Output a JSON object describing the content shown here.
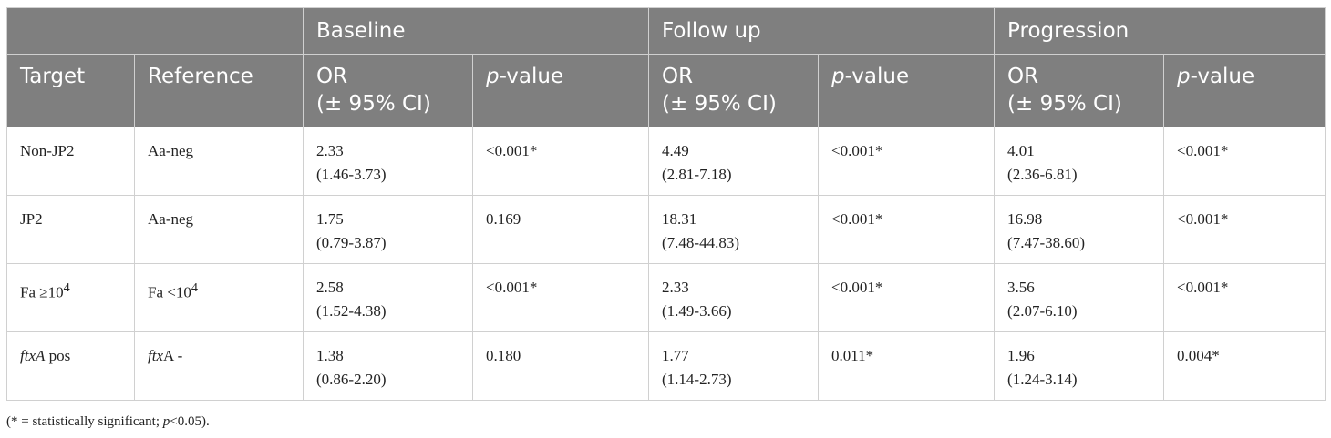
{
  "header": {
    "groups": [
      "Baseline",
      "Follow up",
      "Progression"
    ],
    "target": "Target",
    "reference": "Reference",
    "or_line1": "OR",
    "or_line2": "(± 95% CI)",
    "p_italic": "p",
    "p_rest": "-value"
  },
  "rows": [
    {
      "target": {
        "pre": "Non-JP2",
        "sup": "",
        "post": ""
      },
      "reference": {
        "pre": "Aa-neg",
        "sup": "",
        "post": ""
      },
      "baseline_or": "2.33",
      "baseline_ci": "(1.46-3.73)",
      "baseline_p": "<0.001*",
      "follow_or": "4.49",
      "follow_ci": "(2.81-7.18)",
      "follow_p": "<0.001*",
      "prog_or": "4.01",
      "prog_ci": "(2.36-6.81)",
      "prog_p": "<0.001*"
    },
    {
      "target": {
        "pre": "JP2",
        "sup": "",
        "post": ""
      },
      "reference": {
        "pre": "Aa-neg",
        "sup": "",
        "post": ""
      },
      "baseline_or": "1.75",
      "baseline_ci": "(0.79-3.87)",
      "baseline_p": "0.169",
      "follow_or": "18.31",
      "follow_ci": "(7.48-44.83)",
      "follow_p": "<0.001*",
      "prog_or": "16.98",
      "prog_ci": "(7.47-38.60)",
      "prog_p": "<0.001*"
    },
    {
      "target": {
        "pre": "Fa ≥10",
        "sup": "4",
        "post": ""
      },
      "reference": {
        "pre": "Fa <10",
        "sup": "4",
        "post": ""
      },
      "baseline_or": "2.58",
      "baseline_ci": "(1.52-4.38)",
      "baseline_p": "<0.001*",
      "follow_or": "2.33",
      "follow_ci": "(1.49-3.66)",
      "follow_p": "<0.001*",
      "prog_or": "3.56",
      "prog_ci": "(2.07-6.10)",
      "prog_p": "<0.001*"
    },
    {
      "target": {
        "it": "ftxA",
        "post": " pos"
      },
      "reference": {
        "it": "ftx",
        "post": "A -"
      },
      "baseline_or": "1.38",
      "baseline_ci": "(0.86-2.20)",
      "baseline_p": "0.180",
      "follow_or": "1.77",
      "follow_ci": "(1.14-2.73)",
      "follow_p": "0.011*",
      "prog_or": "1.96",
      "prog_ci": "(1.24-3.14)",
      "prog_p": "0.004*"
    }
  ],
  "footnote": {
    "part1": "(* = statistically significant; ",
    "italic": "p",
    "part2": "<0.05)."
  }
}
